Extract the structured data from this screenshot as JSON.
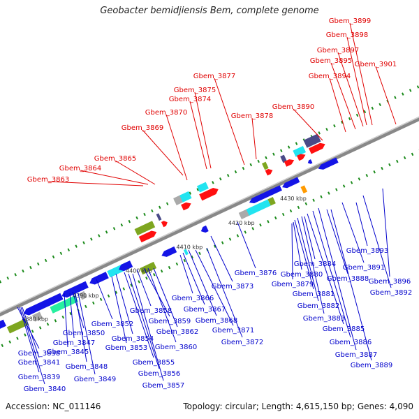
{
  "title": "Geobacter bemidjiensis Bem, complete genome",
  "footer": {
    "accession": "Accession: NC_011146",
    "summary": "Topology: circular; Length: 4,615,150 bp; Genes: 4,090"
  },
  "colors": {
    "top_label": "#e00000",
    "bottom_label": "#0000cc",
    "backbone": "#888888",
    "gene_blue": "#1414e6",
    "gene_red": "#ff1010",
    "gene_cyan": "#22e4f0",
    "gene_green": "#7ea620",
    "gene_navy": "#4a4a88",
    "gene_grey": "#aaaaaa",
    "gene_mint": "#27f0a0",
    "gene_orange": "#ff9a00",
    "tick_green": "#1a8a1a"
  },
  "ticks": [
    "4380 kbp",
    "4390 kbp",
    "4400 kbp",
    "4410 kbp",
    "4420 kbp",
    "4430 kbp"
  ],
  "top_labels": [
    "Gbem_3863",
    "Gbem_3864",
    "Gbem_3865",
    "Gbem_3869",
    "Gbem_3870",
    "Gbem_3874",
    "Gbem_3875",
    "Gbem_3877",
    "Gbem_3878",
    "Gbem_3890",
    "Gbem_3894",
    "Gbem_3895",
    "Gbem_3897",
    "Gbem_3898",
    "Gbem_3899",
    "Gbem_3901"
  ],
  "bottom_labels": [
    "Gbem_3838",
    "Gbem_3839",
    "Gbem_3840",
    "Gbem_3841",
    "Gbem_3845",
    "Gbem_3847",
    "Gbem_3848",
    "Gbem_3849",
    "Gbem_3850",
    "Gbem_3852",
    "Gbem_3853",
    "Gbem_3854",
    "Gbem_3855",
    "Gbem_3856",
    "Gbem_3857",
    "Gbem_3858",
    "Gbem_3859",
    "Gbem_3860",
    "Gbem_3862",
    "Gbem_3866",
    "Gbem_3867",
    "Gbem_3868",
    "Gbem_3871",
    "Gbem_3872",
    "Gbem_3873",
    "Gbem_3876",
    "Gbem_3879",
    "Gbem_3880",
    "Gbem_3881",
    "Gbem_3882",
    "Gbem_3883",
    "Gbem_3884",
    "Gbem_3885",
    "Gbem_3886",
    "Gbem_3887",
    "Gbem_3888",
    "Gbem_3889",
    "Gbem_3891",
    "Gbem_3892",
    "Gbem_3893",
    "Gbem_3896"
  ]
}
